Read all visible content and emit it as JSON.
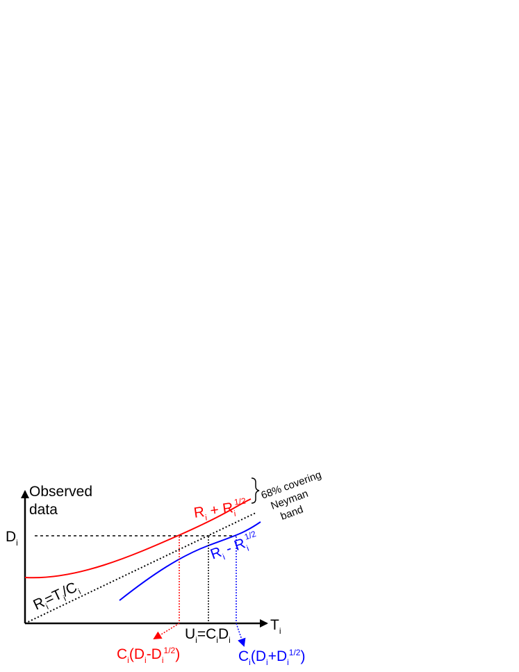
{
  "colors": {
    "axis": "#000000",
    "upper_curve": "#ff0000",
    "lower_curve": "#0000ff",
    "mid_line": "#000000"
  },
  "y_axis": {
    "line1": "Observed",
    "line2": "data",
    "tick_main": "D",
    "tick_sub": "i"
  },
  "x_axis": {
    "label_main": "T",
    "label_sub": "i"
  },
  "upper_curve_label": {
    "r1": "R",
    "s1": "i",
    "plus": " + R",
    "s2": "i",
    "sup": "1/2"
  },
  "lower_curve_label": {
    "r1": "R",
    "s1": "i",
    "minus": " - R",
    "s2": "i",
    "sup": "1/2"
  },
  "mid_line_label": {
    "r": "R",
    "s1": "i",
    "eq": "=T",
    "s2": "i",
    "slash": "/C",
    "s3": "i"
  },
  "band_label": {
    "line1": "68% covering",
    "line2": "Neyman",
    "line3": "band"
  },
  "center_estimate": {
    "u": "U",
    "s1": "i",
    "eq": "=C",
    "s2": "i",
    "d": "D",
    "s3": "i"
  },
  "lower_limit": {
    "c": "C",
    "s1": "i",
    "open": "(D",
    "s2": "i",
    "minus": "-D",
    "s3": "i",
    "sup": "1/2",
    "close": ")"
  },
  "upper_limit": {
    "c": "C",
    "s1": "i",
    "open": "(D",
    "s2": "i",
    "plus": "+D",
    "s3": "i",
    "sup": "1/2",
    "close": ")"
  }
}
